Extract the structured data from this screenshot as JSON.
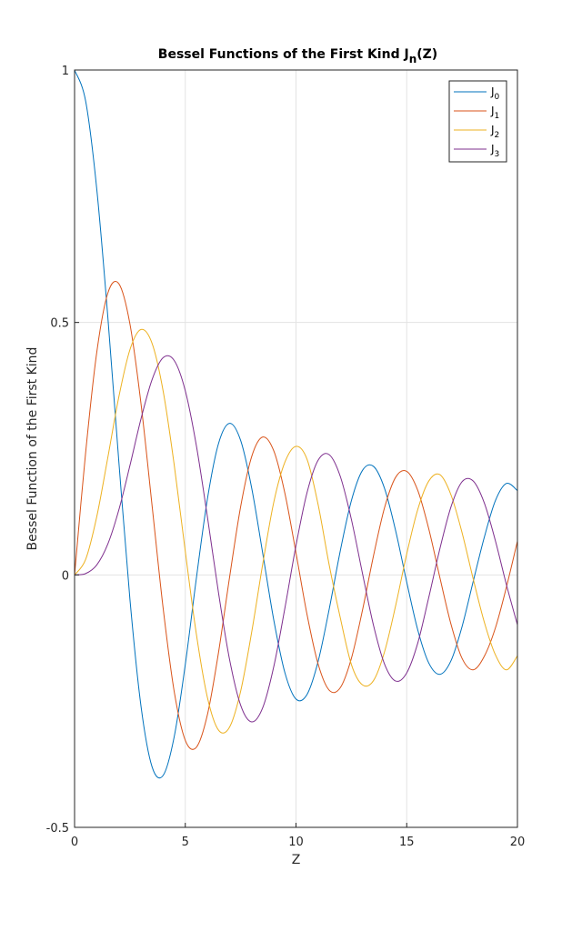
{
  "chart_data": {
    "type": "line",
    "title": "Bessel Functions of the First Kind J",
    "title_sub": "n",
    "title_suffix": "(Z)",
    "xlabel": "Z",
    "ylabel": "Bessel Function of the First Kind",
    "xlim": [
      0,
      20
    ],
    "ylim": [
      -0.5,
      1
    ],
    "xticks": [
      0,
      5,
      10,
      15,
      20
    ],
    "xtick_labels": [
      "0",
      "5",
      "10",
      "15",
      "20"
    ],
    "yticks": [
      -0.5,
      0,
      0.5,
      1
    ],
    "ytick_labels": [
      "-0.5",
      "0",
      "0.5",
      "1"
    ],
    "grid": true,
    "legend_position": "top-right",
    "x": [
      0,
      0.5,
      1,
      1.5,
      2,
      2.5,
      3,
      3.5,
      4,
      4.5,
      5,
      5.5,
      6,
      6.5,
      7,
      7.5,
      8,
      8.5,
      9,
      9.5,
      10,
      10.5,
      11,
      11.5,
      12,
      12.5,
      13,
      13.5,
      14,
      14.5,
      15,
      15.5,
      16,
      16.5,
      17,
      17.5,
      18,
      18.5,
      19,
      19.5,
      20
    ],
    "series": [
      {
        "name": "J",
        "subscript": "0",
        "color": "#0072BD",
        "values": [
          1.0,
          0.9385,
          0.7652,
          0.5118,
          0.2239,
          -0.0484,
          -0.2601,
          -0.3801,
          -0.3971,
          -0.3205,
          -0.1776,
          -0.0068,
          0.1506,
          0.2601,
          0.3001,
          0.2663,
          0.1717,
          0.0419,
          -0.0903,
          -0.1939,
          -0.2459,
          -0.2366,
          -0.1712,
          -0.0677,
          0.0477,
          0.1469,
          0.2069,
          0.215,
          0.1711,
          0.0875,
          -0.0142,
          -0.1092,
          -0.1749,
          -0.1969,
          -0.1699,
          -0.1022,
          -0.0134,
          0.074,
          0.1466,
          0.1812,
          0.167
        ]
      },
      {
        "name": "J",
        "subscript": "1",
        "color": "#D95319",
        "values": [
          0.0,
          0.2423,
          0.4401,
          0.5579,
          0.5767,
          0.4971,
          0.3391,
          0.1374,
          -0.066,
          -0.2311,
          -0.3276,
          -0.3414,
          -0.2767,
          -0.1538,
          -0.0047,
          0.1352,
          0.2346,
          0.2731,
          0.2453,
          0.1613,
          0.0435,
          -0.0789,
          -0.1768,
          -0.2284,
          -0.2234,
          -0.1655,
          -0.0703,
          0.038,
          0.1334,
          0.1934,
          0.2051,
          0.1672,
          0.0904,
          -0.0057,
          -0.0977,
          -0.1654,
          -0.188,
          -0.1615,
          -0.1057,
          -0.0246,
          0.0668
        ]
      },
      {
        "name": "J",
        "subscript": "2",
        "color": "#EDB120",
        "values": [
          0.0,
          0.0306,
          0.1149,
          0.2321,
          0.3528,
          0.4461,
          0.4861,
          0.4586,
          0.3641,
          0.2178,
          0.0466,
          -0.1173,
          -0.2429,
          -0.3074,
          -0.3014,
          -0.2303,
          -0.113,
          0.0223,
          0.1448,
          0.2235,
          0.2546,
          0.2288,
          0.139,
          0.0195,
          -0.0849,
          -0.1773,
          -0.2177,
          -0.2093,
          -0.152,
          -0.0609,
          0.0415,
          0.1298,
          0.1862,
          0.1985,
          0.1584,
          0.0835,
          -0.0075,
          -0.093,
          -0.1578,
          -0.1881,
          -0.1603
        ]
      },
      {
        "name": "J",
        "subscript": "3",
        "color": "#7E2F8E",
        "values": [
          0.0,
          0.0026,
          0.0196,
          0.061,
          0.1289,
          0.2166,
          0.3091,
          0.3868,
          0.4302,
          0.4247,
          0.3648,
          0.2561,
          0.1148,
          -0.0353,
          -0.1676,
          -0.2581,
          -0.2911,
          -0.2626,
          -0.1809,
          -0.0653,
          0.0584,
          0.1633,
          0.2273,
          0.2381,
          0.1951,
          0.1101,
          0.0033,
          -0.1,
          -0.1768,
          -0.2102,
          -0.194,
          -0.1348,
          -0.0438,
          0.0521,
          0.1349,
          0.1846,
          0.186,
          0.1429,
          0.0684,
          -0.0189,
          -0.0989
        ]
      }
    ]
  }
}
